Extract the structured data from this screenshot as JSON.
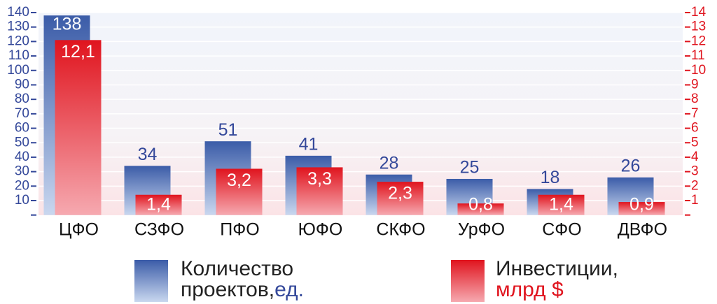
{
  "chart_data": {
    "type": "bar",
    "categories": [
      "ЦФО",
      "СЗФО",
      "ПФО",
      "ЮФО",
      "СКФО",
      "УрФО",
      "СФО",
      "ДВФО"
    ],
    "series": [
      {
        "name": "Количество",
        "name2": "проектов,",
        "unit": "ед.",
        "color": "#3b5ca8",
        "values": [
          138,
          34,
          51,
          41,
          28,
          25,
          18,
          26
        ]
      },
      {
        "name": "Инвестиции,",
        "unit": "млрд $",
        "color": "#e0141e",
        "axis": "y2",
        "values": [
          12.1,
          1.4,
          3.2,
          3.3,
          2.3,
          0.8,
          1.4,
          0.9
        ],
        "value_labels": [
          "12,1",
          "1,4",
          "3,2",
          "3,3",
          "2,3",
          "0,8",
          "1,4",
          "0,9"
        ]
      }
    ],
    "ylim": [
      0,
      140
    ],
    "yticks": [
      10,
      20,
      30,
      40,
      50,
      60,
      70,
      80,
      90,
      100,
      110,
      120,
      130,
      140
    ],
    "y2lim": [
      0,
      14
    ],
    "y2ticks": [
      1,
      2,
      3,
      4,
      5,
      6,
      7,
      8,
      9,
      10,
      11,
      12,
      13,
      14
    ],
    "grid": true
  }
}
